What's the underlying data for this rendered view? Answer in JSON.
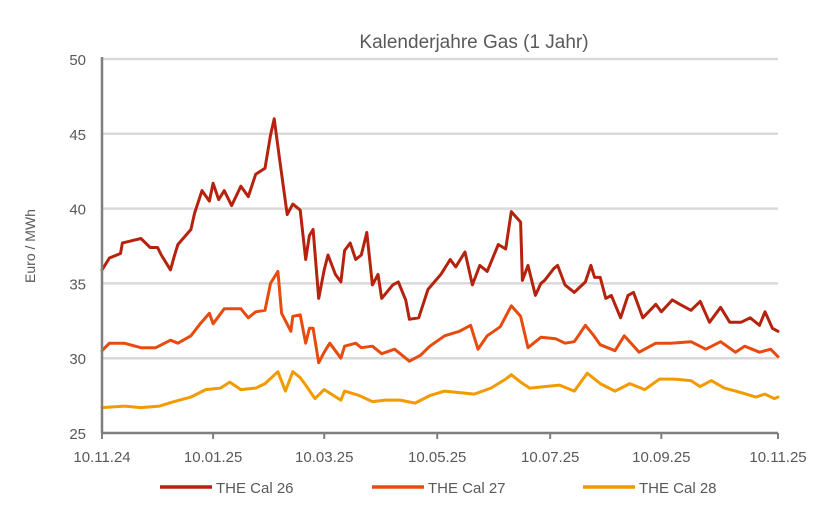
{
  "chart_data": {
    "type": "line",
    "title": "Kalenderjahre Gas (1 Jahr)",
    "xlabel": "",
    "ylabel": "Euro / MWh",
    "x_unit": "days since 10.11.24",
    "xlim": [
      0,
      365
    ],
    "ylim": [
      25,
      50
    ],
    "y_ticks": [
      25,
      30,
      35,
      40,
      45,
      50
    ],
    "x_ticks": [
      {
        "day": 0,
        "label": "10.11.24"
      },
      {
        "day": 60,
        "label": "10.01.25"
      },
      {
        "day": 120,
        "label": "10.03.25"
      },
      {
        "day": 181,
        "label": "10.05.25"
      },
      {
        "day": 242,
        "label": "10.07.25"
      },
      {
        "day": 302,
        "label": "10.09.25"
      },
      {
        "day": 365,
        "label": "10.11.25"
      }
    ],
    "grid": true,
    "legend_position": "bottom",
    "series": [
      {
        "name": "THE Cal 26",
        "color": "#b5230e",
        "x": [
          0,
          4,
          10,
          11,
          21,
          26,
          30,
          32,
          37,
          39,
          41,
          48,
          50,
          54,
          58,
          60,
          63,
          66,
          70,
          75,
          79,
          83,
          88,
          91,
          93,
          96,
          100,
          103,
          107,
          110,
          112,
          114,
          117,
          120,
          122,
          126,
          129,
          131,
          134,
          137,
          140,
          143,
          146,
          149,
          151,
          157,
          160,
          164,
          166,
          171,
          176,
          183,
          188,
          191,
          196,
          200,
          204,
          208,
          214,
          218,
          221,
          226,
          227,
          230,
          234,
          237,
          239,
          244,
          246,
          250,
          255,
          261,
          264,
          266,
          269,
          272,
          275,
          280,
          284,
          287,
          292,
          299,
          302,
          308,
          312,
          318,
          323,
          328,
          334,
          339,
          345,
          350,
          355,
          358,
          362,
          365
        ],
        "y": [
          35.9,
          36.7,
          37.0,
          37.7,
          38.0,
          37.4,
          37.4,
          36.9,
          35.9,
          36.8,
          37.6,
          38.6,
          39.7,
          41.2,
          40.5,
          41.7,
          40.6,
          41.2,
          40.2,
          41.5,
          40.8,
          42.3,
          42.7,
          44.9,
          46.0,
          43.2,
          39.6,
          40.3,
          39.9,
          36.6,
          38.2,
          38.6,
          34.0,
          35.9,
          36.9,
          35.6,
          35.1,
          37.2,
          37.7,
          36.6,
          36.9,
          38.4,
          34.9,
          35.6,
          34.0,
          34.9,
          35.1,
          33.9,
          32.6,
          32.7,
          34.6,
          35.6,
          36.6,
          36.1,
          37.1,
          34.9,
          36.2,
          35.8,
          37.6,
          37.3,
          39.8,
          39.1,
          35.2,
          36.2,
          34.2,
          35.0,
          35.2,
          36.0,
          36.2,
          34.9,
          34.4,
          35.1,
          36.2,
          35.4,
          35.4,
          34.0,
          34.2,
          32.7,
          34.2,
          34.4,
          32.7,
          33.6,
          33.1,
          33.9,
          33.6,
          33.2,
          33.8,
          32.4,
          33.4,
          32.4,
          32.4,
          32.7,
          32.2,
          33.1,
          32.0,
          31.8
        ]
      },
      {
        "name": "THE Cal 27",
        "color": "#e84b0e",
        "x": [
          0,
          4,
          12,
          21,
          29,
          37,
          41,
          48,
          53,
          58,
          60,
          66,
          75,
          79,
          83,
          88,
          91,
          95,
          97,
          102,
          103,
          107,
          110,
          112,
          114,
          117,
          120,
          123,
          129,
          131,
          137,
          140,
          146,
          151,
          158,
          166,
          172,
          177,
          185,
          193,
          199,
          203,
          208,
          215,
          221,
          226,
          230,
          237,
          245,
          250,
          255,
          261,
          265,
          269,
          277,
          282,
          290,
          299,
          307,
          318,
          326,
          334,
          342,
          347,
          355,
          361,
          365
        ],
        "y": [
          30.5,
          31.0,
          31.0,
          30.7,
          30.7,
          31.2,
          31.0,
          31.5,
          32.3,
          33.0,
          32.3,
          33.3,
          33.3,
          32.7,
          33.1,
          33.2,
          35.0,
          35.8,
          33.0,
          31.8,
          32.8,
          32.9,
          31.0,
          32.0,
          32.0,
          29.7,
          30.4,
          31.0,
          30.0,
          30.8,
          31.0,
          30.7,
          30.8,
          30.3,
          30.6,
          29.8,
          30.2,
          30.8,
          31.5,
          31.8,
          32.2,
          30.6,
          31.5,
          32.1,
          33.5,
          32.8,
          30.7,
          31.4,
          31.3,
          31.0,
          31.1,
          32.2,
          31.6,
          30.9,
          30.5,
          31.5,
          30.4,
          31.0,
          31.0,
          31.1,
          30.6,
          31.1,
          30.4,
          30.8,
          30.4,
          30.6,
          30.1
        ]
      },
      {
        "name": "THE Cal 28",
        "color": "#f39a00",
        "x": [
          0,
          12,
          21,
          31,
          39,
          48,
          56,
          64,
          69,
          75,
          83,
          88,
          95,
          99,
          103,
          107,
          110,
          115,
          120,
          129,
          131,
          139,
          146,
          153,
          161,
          169,
          177,
          185,
          193,
          201,
          210,
          218,
          221,
          226,
          231,
          239,
          247,
          255,
          262,
          269,
          277,
          285,
          293,
          301,
          309,
          318,
          323,
          329,
          336,
          345,
          353,
          358,
          363,
          365
        ],
        "y": [
          26.7,
          26.8,
          26.7,
          26.8,
          27.1,
          27.4,
          27.9,
          28.0,
          28.4,
          27.9,
          28.0,
          28.3,
          29.1,
          27.8,
          29.1,
          28.7,
          28.2,
          27.3,
          27.9,
          27.2,
          27.8,
          27.5,
          27.1,
          27.2,
          27.2,
          27.0,
          27.5,
          27.8,
          27.7,
          27.6,
          28.0,
          28.6,
          28.9,
          28.4,
          28.0,
          28.1,
          28.2,
          27.8,
          29.0,
          28.3,
          27.8,
          28.3,
          27.9,
          28.6,
          28.6,
          28.5,
          28.1,
          28.5,
          28.0,
          27.7,
          27.4,
          27.6,
          27.3,
          27.4
        ]
      }
    ]
  }
}
